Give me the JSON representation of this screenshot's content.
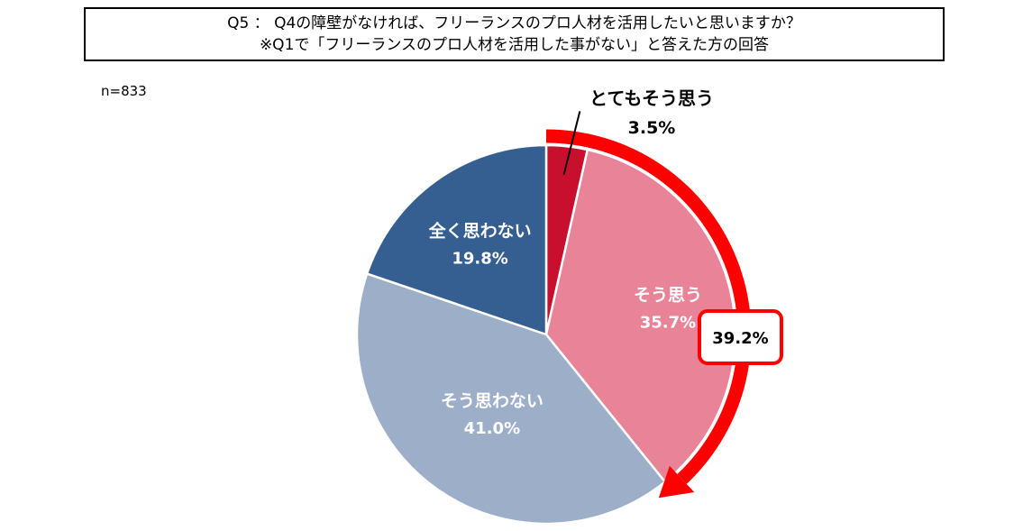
{
  "chart_data": {
    "type": "pie",
    "title": [
      "Q5 ： Q4の障壁がなければ、フリーランスのプロ人材を活用したいと思いますか？",
      "※Q1で「フリーランスのプロ人材を活用した事がない」と答えた方の回答"
    ],
    "sample_size": "n=833",
    "slices": [
      {
        "label": "とてもそう思う",
        "value": 3.5,
        "value_label": "3.5%",
        "color": "#C8102E"
      },
      {
        "label": "そう思う",
        "value": 35.7,
        "value_label": "35.7%",
        "color": "#E88398"
      },
      {
        "label": "そう思わない",
        "value": 41.0,
        "value_label": "41.0%",
        "color": "#9DAFC8"
      },
      {
        "label": "全く思わない",
        "value": 19.8,
        "value_label": "19.8%",
        "color": "#365F91"
      }
    ],
    "annotation": {
      "text": "39.2%",
      "color": "#FF0000"
    }
  }
}
